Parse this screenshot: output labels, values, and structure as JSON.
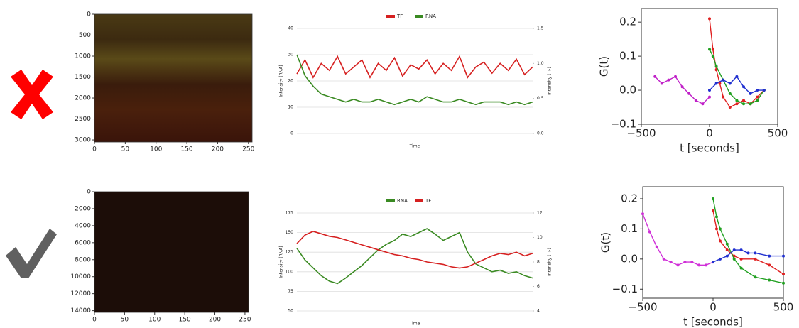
{
  "chart_data": [
    {
      "type": "image",
      "xlim": [
        0,
        256
      ],
      "ylim": [
        0,
        3050
      ],
      "invert_y": true,
      "xticks": [
        0,
        50,
        100,
        150,
        200,
        250
      ],
      "yticks": [
        0,
        500,
        1000,
        1500,
        2000,
        2500,
        3000
      ]
    },
    {
      "type": "line",
      "legend": "top",
      "grid": true,
      "xlabel": "Time",
      "ylabel": "Intensity (RNA)",
      "y2label": "Intensity (TF)",
      "ylim": [
        0,
        40
      ],
      "yticks": [
        0,
        10,
        20,
        30,
        40
      ],
      "y2lim": [
        0,
        1.5
      ],
      "y2ticks": [
        {
          "value": 0,
          "label": "0.0"
        },
        {
          "value": 0.5,
          "label": "0.5"
        },
        {
          "value": 1,
          "label": "1.0"
        },
        1.5
      ],
      "series": [
        {
          "name": "TF",
          "color": "#d62020",
          "axis": "y2",
          "values": [
            0.85,
            1.05,
            0.8,
            1.0,
            0.9,
            1.1,
            0.85,
            0.95,
            1.05,
            0.8,
            1.0,
            0.9,
            1.08,
            0.82,
            0.98,
            0.92,
            1.05,
            0.85,
            1.0,
            0.9,
            1.1,
            0.8,
            0.95,
            1.02,
            0.86,
            1.0,
            0.9,
            1.06,
            0.84,
            0.95
          ]
        },
        {
          "name": "RNA",
          "color": "#3a8a22",
          "values": [
            30,
            22,
            18,
            15,
            14,
            13,
            12,
            13,
            12,
            12,
            13,
            12,
            11,
            12,
            13,
            12,
            14,
            13,
            12,
            12,
            13,
            12,
            11,
            12,
            12,
            12,
            11,
            12,
            11,
            12
          ]
        }
      ]
    },
    {
      "type": "scatter",
      "xlabel": "t [seconds]",
      "ylabel": "G(t)",
      "xlim": [
        -500,
        500
      ],
      "ylim": [
        -0.1,
        0.24
      ],
      "xticks": [
        {
          "value": -500,
          "label": "−500"
        },
        0,
        500
      ],
      "yticks": [
        {
          "value": -0.1,
          "label": "−0.1"
        },
        {
          "value": 0,
          "label": "0.0"
        },
        0.1,
        0.2
      ],
      "series": [
        {
          "color": "#c020c8",
          "x": [
            -400,
            -350,
            -300,
            -250,
            -200,
            -150,
            -100,
            -50,
            0
          ],
          "values": [
            0.04,
            0.02,
            0.03,
            0.04,
            0.01,
            -0.01,
            -0.03,
            -0.04,
            -0.02
          ]
        },
        {
          "color": "#e02020",
          "x": [
            0,
            25,
            50,
            75,
            100,
            150,
            200,
            250,
            300,
            350,
            400
          ],
          "values": [
            0.21,
            0.12,
            0.06,
            0.02,
            -0.02,
            -0.05,
            -0.04,
            -0.03,
            -0.04,
            -0.02,
            0.0
          ]
        },
        {
          "color": "#20a020",
          "x": [
            0,
            25,
            50,
            100,
            150,
            200,
            250,
            300,
            350,
            400
          ],
          "values": [
            0.12,
            0.1,
            0.07,
            0.03,
            -0.01,
            -0.03,
            -0.04,
            -0.04,
            -0.03,
            0.0
          ]
        },
        {
          "color": "#2030d0",
          "x": [
            0,
            50,
            100,
            150,
            200,
            250,
            300,
            350,
            400
          ],
          "values": [
            0.0,
            0.02,
            0.03,
            0.02,
            0.04,
            0.01,
            -0.01,
            0.0,
            0.0
          ]
        }
      ]
    },
    {
      "type": "image",
      "xlim": [
        0,
        256
      ],
      "ylim": [
        0,
        14200
      ],
      "invert_y": true,
      "xticks": [
        0,
        50,
        100,
        150,
        200,
        250
      ],
      "yticks": [
        0,
        2000,
        4000,
        6000,
        8000,
        10000,
        12000,
        14000
      ]
    },
    {
      "type": "line",
      "legend": "top",
      "grid": true,
      "xlabel": "Time",
      "ylabel": "Intensity (RNA)",
      "y2label": "Intensity (TF)",
      "ylim": [
        50,
        175
      ],
      "yticks": [
        50,
        75,
        100,
        125,
        150,
        175
      ],
      "y2lim": [
        4,
        12
      ],
      "y2ticks": [
        4,
        6,
        8,
        10,
        12
      ],
      "series": [
        {
          "name": "RNA",
          "color": "#3a8a22",
          "values": [
            130,
            115,
            105,
            95,
            88,
            85,
            92,
            100,
            108,
            118,
            128,
            135,
            140,
            148,
            145,
            150,
            155,
            148,
            140,
            145,
            150,
            125,
            110,
            105,
            100,
            102,
            98,
            100,
            95,
            92
          ]
        },
        {
          "name": "TF",
          "color": "#d62020",
          "axis": "y2",
          "values": [
            9.5,
            10.2,
            10.5,
            10.3,
            10.1,
            10,
            9.8,
            9.6,
            9.4,
            9.2,
            9,
            8.8,
            8.6,
            8.5,
            8.3,
            8.2,
            8.0,
            7.9,
            7.8,
            7.6,
            7.5,
            7.6,
            7.9,
            8.2,
            8.5,
            8.7,
            8.6,
            8.8,
            8.5,
            8.7
          ]
        }
      ]
    },
    {
      "type": "scatter",
      "xlabel": "t [seconds]",
      "ylabel": "G(t)",
      "xlim": [
        -500,
        500
      ],
      "ylim": [
        -0.13,
        0.24
      ],
      "xticks": [
        {
          "value": -500,
          "label": "−500"
        },
        0,
        500
      ],
      "yticks": [
        {
          "value": -0.1,
          "label": "−0.1"
        },
        {
          "value": 0,
          "label": "0.0"
        },
        0.1,
        0.2
      ],
      "series": [
        {
          "color": "#d030d8",
          "x": [
            -500,
            -450,
            -400,
            -350,
            -300,
            -250,
            -200,
            -150,
            -100,
            -50,
            0
          ],
          "values": [
            0.15,
            0.09,
            0.04,
            0.0,
            -0.01,
            -0.02,
            -0.01,
            -0.01,
            -0.02,
            -0.02,
            -0.01
          ]
        },
        {
          "color": "#e02020",
          "x": [
            0,
            25,
            50,
            100,
            150,
            200,
            300,
            400,
            500
          ],
          "values": [
            0.16,
            0.1,
            0.06,
            0.03,
            0.01,
            0.0,
            0.0,
            -0.02,
            -0.05
          ]
        },
        {
          "color": "#20a020",
          "x": [
            0,
            25,
            50,
            100,
            150,
            200,
            300,
            400,
            500
          ],
          "values": [
            0.2,
            0.14,
            0.1,
            0.05,
            0.0,
            -0.03,
            -0.06,
            -0.07,
            -0.08
          ]
        },
        {
          "color": "#2030d0",
          "x": [
            0,
            50,
            100,
            150,
            200,
            250,
            300,
            400,
            500
          ],
          "values": [
            -0.01,
            0.0,
            0.01,
            0.03,
            0.03,
            0.02,
            0.02,
            0.01,
            0.01
          ]
        }
      ]
    }
  ]
}
